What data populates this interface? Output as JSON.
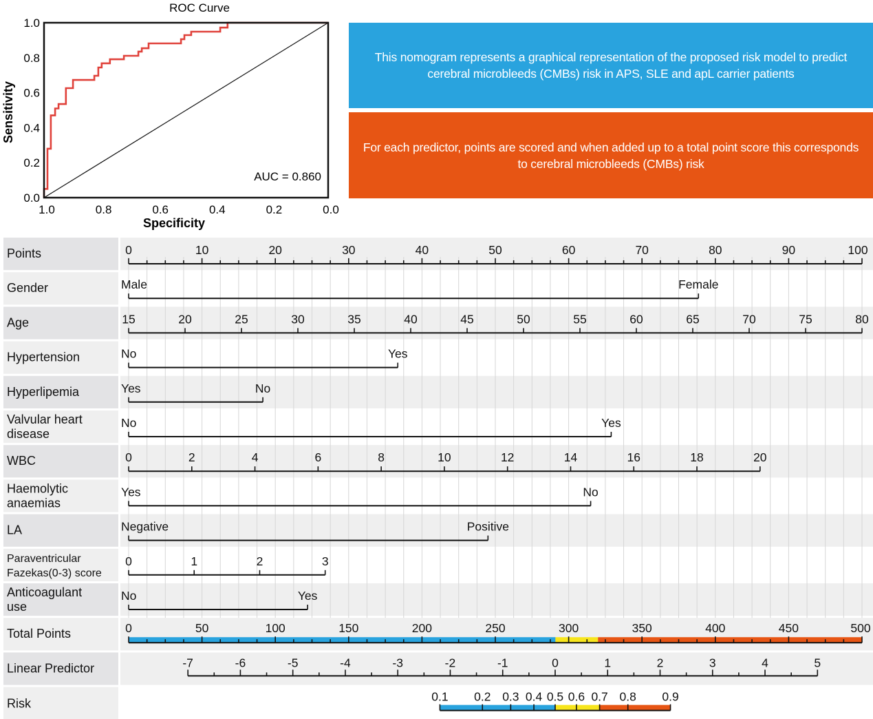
{
  "colors": {
    "roc_curve": "#e0413a",
    "info_blue": "#29a3de",
    "info_orange": "#e75514",
    "risk_low": "#29a3de",
    "risk_mid": "#f7e51c",
    "risk_high": "#e75514",
    "label_dark": "#e3e3e5",
    "label_light": "#efefef",
    "row_gray": "#efefef",
    "grid": "#d6d6d6"
  },
  "info": {
    "blue_text": "This nomogram represents a graphical representation of  the proposed risk model to predict cerebral microbleeds (CMBs) risk in APS, SLE and apL carrier patients",
    "orange_text": "For each predictor, points are scored and when added up to a total point score this corresponds to cerebral microbleeds (CMBs) risk"
  },
  "chart_data": [
    {
      "type": "line",
      "title": "ROC Curve",
      "xlabel": "Specificity",
      "ylabel": "Sensitivity",
      "xlim": [
        1.0,
        0.0
      ],
      "ylim": [
        0.0,
        1.0
      ],
      "x_reversed": true,
      "xticks": [
        "1.0",
        "0.8",
        "0.6",
        "0.4",
        "0.2",
        "0.0"
      ],
      "yticks": [
        "0.0",
        "0.2",
        "0.4",
        "0.6",
        "0.8",
        "1.0"
      ],
      "annotation": "AUC = 0.860",
      "auc": 0.86,
      "grid": false,
      "series": [
        {
          "name": "ROC",
          "specificity": [
            1.0,
            1.0,
            0.988,
            0.988,
            0.976,
            0.976,
            0.961,
            0.961,
            0.949,
            0.949,
            0.923,
            0.923,
            0.898,
            0.898,
            0.823,
            0.823,
            0.809,
            0.809,
            0.797,
            0.797,
            0.768,
            0.768,
            0.719,
            0.719,
            0.668,
            0.668,
            0.656,
            0.656,
            0.632,
            0.632,
            0.518,
            0.518,
            0.506,
            0.506,
            0.482,
            0.482,
            0.38,
            0.38,
            0.354,
            0.354,
            0.0
          ],
          "sensitivity": [
            0.0,
            0.05,
            0.05,
            0.28,
            0.28,
            0.47,
            0.47,
            0.51,
            0.51,
            0.535,
            0.535,
            0.626,
            0.626,
            0.673,
            0.673,
            0.697,
            0.697,
            0.744,
            0.744,
            0.768,
            0.768,
            0.791,
            0.791,
            0.811,
            0.811,
            0.835,
            0.835,
            0.854,
            0.854,
            0.882,
            0.882,
            0.906,
            0.906,
            0.929,
            0.929,
            0.949,
            0.949,
            0.972,
            0.972,
            1.0,
            1.0
          ]
        },
        {
          "name": "Reference",
          "specificity": [
            1.0,
            0.0
          ],
          "sensitivity": [
            0.0,
            1.0
          ]
        }
      ]
    },
    {
      "type": "nomogram",
      "points_range": [
        0,
        100
      ],
      "points_ticks": [
        0,
        10,
        20,
        30,
        40,
        50,
        60,
        70,
        80,
        90,
        100
      ],
      "points_minor_step": 2.5,
      "rows": [
        {
          "label": "Points",
          "kind": "points"
        },
        {
          "label": "Gender",
          "kind": "categorical",
          "levels": [
            {
              "label": "Male",
              "points": 0
            },
            {
              "label": "Female",
              "points": 77.7
            }
          ]
        },
        {
          "label": "Age",
          "kind": "continuous",
          "value_range": [
            15,
            80
          ],
          "points_range": [
            0,
            100
          ],
          "ticks": [
            15,
            20,
            25,
            30,
            35,
            40,
            45,
            50,
            55,
            60,
            65,
            70,
            75,
            80
          ]
        },
        {
          "label": "Hypertension",
          "kind": "categorical",
          "levels": [
            {
              "label": "No",
              "points": 0
            },
            {
              "label": "Yes",
              "points": 36.7
            }
          ]
        },
        {
          "label": "Hyperlipemia",
          "kind": "categorical",
          "levels": [
            {
              "label": "Yes",
              "points": 0
            },
            {
              "label": "No",
              "points": 18.3
            }
          ]
        },
        {
          "label": "Valvular heart disease",
          "label_lines": [
            "Valvular heart",
            "disease"
          ],
          "kind": "categorical",
          "levels": [
            {
              "label": "No",
              "points": 0
            },
            {
              "label": "Yes",
              "points": 65.8
            }
          ]
        },
        {
          "label": "WBC",
          "kind": "continuous",
          "value_range": [
            0,
            20
          ],
          "points_range": [
            0,
            86.1
          ],
          "ticks": [
            0,
            2,
            4,
            6,
            8,
            10,
            12,
            14,
            16,
            18,
            20
          ]
        },
        {
          "label": "Haemolytic anaemias",
          "label_lines": [
            "Haemolytic",
            "anaemias"
          ],
          "kind": "categorical",
          "levels": [
            {
              "label": "Yes",
              "points": 0
            },
            {
              "label": "No",
              "points": 63.0
            }
          ]
        },
        {
          "label": "LA",
          "kind": "categorical",
          "levels": [
            {
              "label": "Negative",
              "points": 0
            },
            {
              "label": "Positive",
              "points": 49.0
            }
          ]
        },
        {
          "label": "Paraventricular Fazekas(0-3) score",
          "label_lines": [
            "Paraventricular",
            "Fazekas(0-3) score"
          ],
          "small_label": true,
          "kind": "continuous",
          "value_range": [
            0,
            3
          ],
          "points_range": [
            0,
            26.8
          ],
          "ticks": [
            0,
            1,
            2,
            3
          ]
        },
        {
          "label": "Anticoagulant use",
          "label_lines": [
            "Anticoagulant",
            "use"
          ],
          "kind": "categorical",
          "levels": [
            {
              "label": "No",
              "points": 0
            },
            {
              "label": "Yes",
              "points": 24.4
            }
          ]
        }
      ],
      "total_points": {
        "label": "Total Points",
        "range": [
          0,
          500
        ],
        "ticks": [
          0,
          50,
          100,
          150,
          200,
          250,
          300,
          350,
          400,
          450,
          500
        ],
        "minor_step": 12.5,
        "color_bands": [
          {
            "from": 0,
            "to": 291,
            "color": "blue"
          },
          {
            "from": 291,
            "to": 320,
            "color": "yellow"
          },
          {
            "from": 320,
            "to": 500,
            "color": "orange"
          }
        ]
      },
      "linear_predictor": {
        "label": "Linear Predictor",
        "range": [
          -7,
          5
        ],
        "ticks": [
          -7,
          -6,
          -5,
          -4,
          -3,
          -2,
          -1,
          0,
          1,
          2,
          3,
          4,
          5
        ],
        "minor_step": 0.5,
        "total_points_at_zero": 290.8,
        "total_points_per_unit": 35.77
      },
      "risk": {
        "label": "Risk",
        "ticks": [
          0.1,
          0.2,
          0.3,
          0.4,
          0.5,
          0.6,
          0.7,
          0.8,
          0.9
        ],
        "tick_labels": [
          "0.1",
          "0.2",
          "0.3",
          "0.4",
          "0.5",
          "0.6",
          "0.7",
          "0.8",
          "0.9"
        ],
        "color_bands": [
          {
            "from": 0.1,
            "to": 0.5,
            "color": "blue"
          },
          {
            "from": 0.5,
            "to": 0.7,
            "color": "yellow"
          },
          {
            "from": 0.7,
            "to": 0.9,
            "color": "orange"
          }
        ]
      }
    }
  ]
}
